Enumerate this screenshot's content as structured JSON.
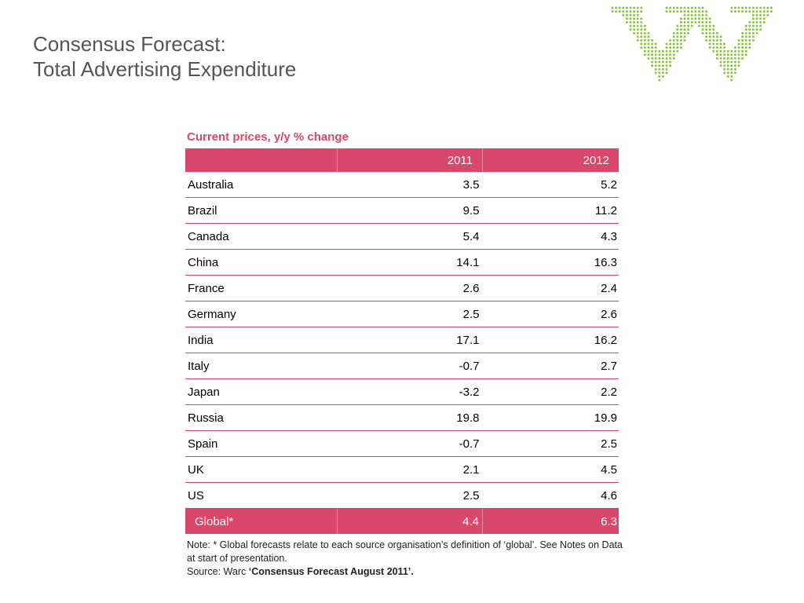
{
  "title": {
    "line1": "Consensus Forecast:",
    "line2": "Total Advertising Expenditure"
  },
  "logo": {
    "icon": "warc-dotted-logo",
    "color": "#8cc63f"
  },
  "table": {
    "subtitle": "Current prices, y/y % change",
    "headers": [
      "",
      "2011",
      "2012"
    ],
    "rows": [
      {
        "country": "Australia",
        "y2011": "3.5",
        "y2012": "5.2"
      },
      {
        "country": "Brazil",
        "y2011": "9.5",
        "y2012": "11.2"
      },
      {
        "country": "Canada",
        "y2011": "5.4",
        "y2012": "4.3"
      },
      {
        "country": "China",
        "y2011": "14.1",
        "y2012": "16.3"
      },
      {
        "country": "France",
        "y2011": "2.6",
        "y2012": "2.4"
      },
      {
        "country": "Germany",
        "y2011": "2.5",
        "y2012": "2.6"
      },
      {
        "country": "India",
        "y2011": "17.1",
        "y2012": "16.2"
      },
      {
        "country": "Italy",
        "y2011": "-0.7",
        "y2012": "2.7"
      },
      {
        "country": "Japan",
        "y2011": "-3.2",
        "y2012": "2.2"
      },
      {
        "country": "Russia",
        "y2011": "19.8",
        "y2012": "19.9"
      },
      {
        "country": "Spain",
        "y2011": "-0.7",
        "y2012": "2.5"
      },
      {
        "country": "UK",
        "y2011": "2.1",
        "y2012": "4.5"
      },
      {
        "country": "US",
        "y2011": "2.5",
        "y2012": "4.6"
      }
    ],
    "global": {
      "country": "Global*",
      "y2011": "4.4",
      "y2012": "6.3"
    },
    "accent_color": "#d9486a"
  },
  "notes": {
    "note": "Note: * Global forecasts relate to each source organisation’s definition of ‘global’. See Notes on Data at start of presentation.",
    "source_prefix": "Source: Warc ",
    "source_title": "‘Consensus Forecast August 2011’."
  }
}
